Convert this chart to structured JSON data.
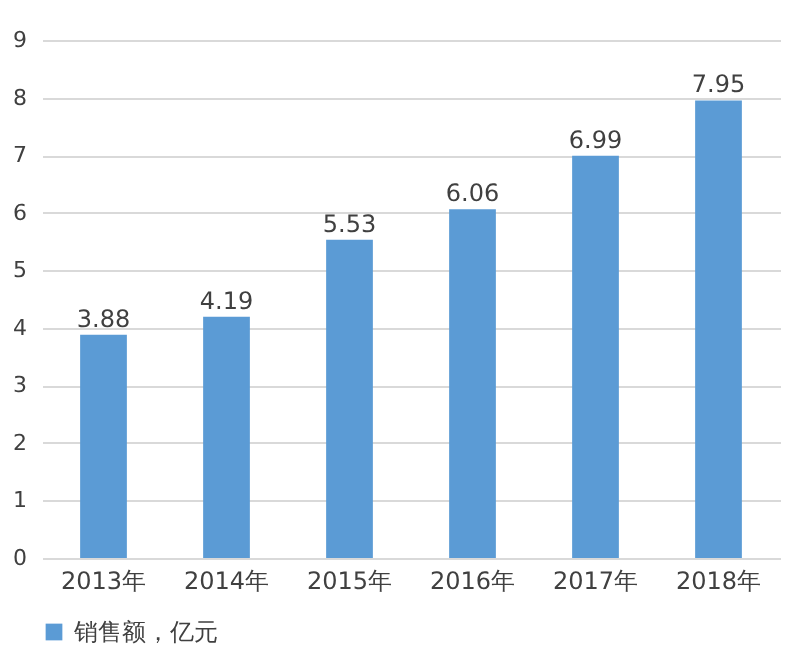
{
  "chart_data": {
    "type": "bar",
    "categories": [
      "2013年",
      "2014年",
      "2015年",
      "2016年",
      "2017年",
      "2018年"
    ],
    "series": [
      {
        "name": "销售额，亿元",
        "color": "#5b9bd5",
        "values": [
          3.88,
          4.19,
          5.53,
          6.06,
          6.99,
          7.95
        ]
      }
    ],
    "ylim": [
      0,
      9
    ],
    "yticks": [
      0,
      1,
      2,
      3,
      4,
      5,
      6,
      7,
      8,
      9
    ],
    "grid": "y",
    "legend": "bottom",
    "data_labels": true
  }
}
